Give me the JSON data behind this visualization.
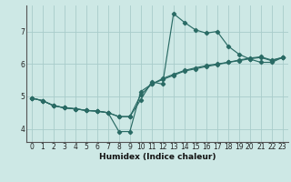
{
  "xlabel": "Humidex (Indice chaleur)",
  "bg_color": "#cde8e5",
  "line_color": "#2a6b65",
  "grid_color": "#a8ccca",
  "xlim": [
    -0.5,
    23.5
  ],
  "ylim": [
    3.6,
    7.8
  ],
  "xticks": [
    0,
    1,
    2,
    3,
    4,
    5,
    6,
    7,
    8,
    9,
    10,
    11,
    12,
    13,
    14,
    15,
    16,
    17,
    18,
    19,
    20,
    21,
    22,
    23
  ],
  "yticks": [
    4,
    5,
    6,
    7
  ],
  "series": [
    {
      "x": [
        0,
        1,
        2,
        3,
        4,
        5,
        6,
        7,
        8,
        9,
        10,
        11,
        12,
        13,
        14,
        15,
        16,
        17,
        18,
        19,
        20,
        21,
        22,
        23
      ],
      "y": [
        4.95,
        4.87,
        4.72,
        4.65,
        4.62,
        4.57,
        4.55,
        4.5,
        4.38,
        4.38,
        4.9,
        5.45,
        5.38,
        7.55,
        7.28,
        7.05,
        6.95,
        7.0,
        6.55,
        6.3,
        6.15,
        6.05,
        6.05,
        6.2
      ]
    },
    {
      "x": [
        0,
        1,
        2,
        3,
        4,
        5,
        6,
        7,
        8,
        9,
        10,
        11,
        12,
        13,
        14,
        15,
        16,
        17,
        18,
        19,
        20,
        21,
        22,
        23
      ],
      "y": [
        4.95,
        4.87,
        4.72,
        4.65,
        4.62,
        4.57,
        4.55,
        4.5,
        4.38,
        4.38,
        5.05,
        5.38,
        5.52,
        5.65,
        5.78,
        5.85,
        5.92,
        5.98,
        6.05,
        6.12,
        6.18,
        6.22,
        6.12,
        6.2
      ]
    },
    {
      "x": [
        0,
        1,
        2,
        3,
        4,
        5,
        6,
        7,
        8,
        9,
        10,
        11,
        12,
        13,
        14,
        15,
        16,
        17,
        18,
        19,
        20,
        21,
        22,
        23
      ],
      "y": [
        4.95,
        4.87,
        4.72,
        4.65,
        4.62,
        4.57,
        4.55,
        4.5,
        3.92,
        3.92,
        5.15,
        5.38,
        5.55,
        5.68,
        5.8,
        5.88,
        5.95,
        6.0,
        6.05,
        6.1,
        6.16,
        6.2,
        6.1,
        6.2
      ]
    }
  ]
}
